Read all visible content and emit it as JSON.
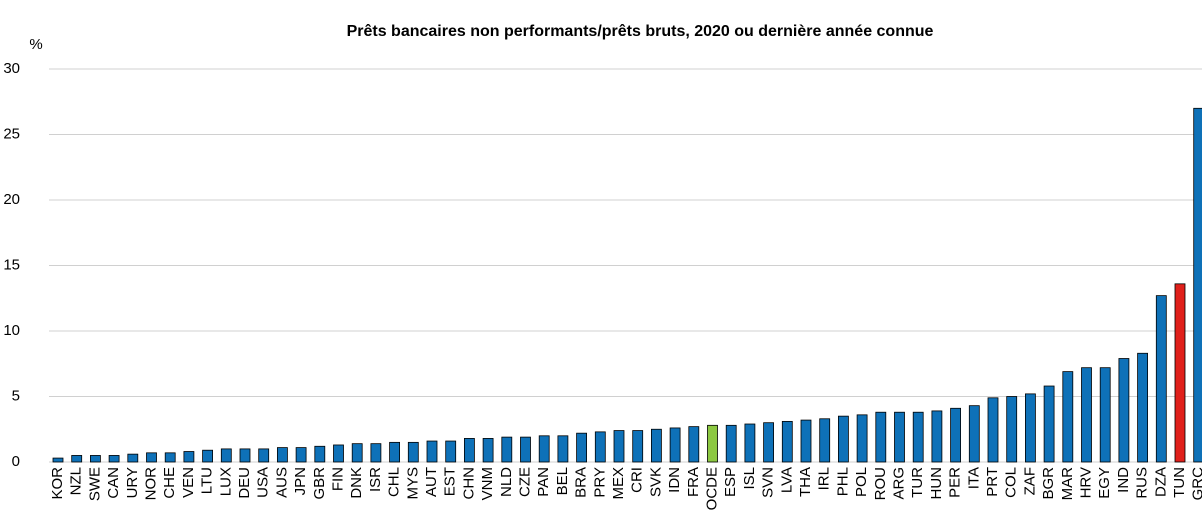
{
  "chart_data": {
    "type": "bar",
    "title": "Prêts bancaires non performants/prêts bruts, 2020 ou dernière année connue",
    "y_unit": "%",
    "categories": [
      "KOR",
      "NZL",
      "SWE",
      "CAN",
      "URY",
      "NOR",
      "CHE",
      "VEN",
      "LTU",
      "LUX",
      "DEU",
      "USA",
      "AUS",
      "JPN",
      "GBR",
      "FIN",
      "DNK",
      "ISR",
      "CHL",
      "MYS",
      "AUT",
      "EST",
      "CHN",
      "VNM",
      "NLD",
      "CZE",
      "PAN",
      "BEL",
      "BRA",
      "PRY",
      "MEX",
      "CRI",
      "SVK",
      "IDN",
      "FRA",
      "OCDE",
      "ESP",
      "ISL",
      "SVN",
      "LVA",
      "THA",
      "IRL",
      "PHL",
      "POL",
      "ROU",
      "ARG",
      "TUR",
      "HUN",
      "PER",
      "ITA",
      "PRT",
      "COL",
      "ZAF",
      "BGR",
      "MAR",
      "HRV",
      "EGY",
      "IND",
      "RUS",
      "DZA",
      "TUN",
      "GRC"
    ],
    "values": [
      0.3,
      0.5,
      0.5,
      0.5,
      0.6,
      0.7,
      0.7,
      0.8,
      0.9,
      1.0,
      1.0,
      1.0,
      1.1,
      1.1,
      1.2,
      1.3,
      1.4,
      1.4,
      1.5,
      1.5,
      1.6,
      1.6,
      1.8,
      1.8,
      1.9,
      1.9,
      2.0,
      2.0,
      2.2,
      2.3,
      2.4,
      2.4,
      2.5,
      2.6,
      2.7,
      2.8,
      2.8,
      2.9,
      3.0,
      3.1,
      3.2,
      3.3,
      3.5,
      3.6,
      3.8,
      3.8,
      3.8,
      3.9,
      4.1,
      4.3,
      4.9,
      5.0,
      5.2,
      5.8,
      6.9,
      7.2,
      7.2,
      7.9,
      8.3,
      12.7,
      13.6,
      27.0
    ],
    "colors": [
      "#0e71b8",
      "#0e71b8",
      "#0e71b8",
      "#0e71b8",
      "#0e71b8",
      "#0e71b8",
      "#0e71b8",
      "#0e71b8",
      "#0e71b8",
      "#0e71b8",
      "#0e71b8",
      "#0e71b8",
      "#0e71b8",
      "#0e71b8",
      "#0e71b8",
      "#0e71b8",
      "#0e71b8",
      "#0e71b8",
      "#0e71b8",
      "#0e71b8",
      "#0e71b8",
      "#0e71b8",
      "#0e71b8",
      "#0e71b8",
      "#0e71b8",
      "#0e71b8",
      "#0e71b8",
      "#0e71b8",
      "#0e71b8",
      "#0e71b8",
      "#0e71b8",
      "#0e71b8",
      "#0e71b8",
      "#0e71b8",
      "#0e71b8",
      "#8cc841",
      "#0e71b8",
      "#0e71b8",
      "#0e71b8",
      "#0e71b8",
      "#0e71b8",
      "#0e71b8",
      "#0e71b8",
      "#0e71b8",
      "#0e71b8",
      "#0e71b8",
      "#0e71b8",
      "#0e71b8",
      "#0e71b8",
      "#0e71b8",
      "#0e71b8",
      "#0e71b8",
      "#0e71b8",
      "#0e71b8",
      "#0e71b8",
      "#0e71b8",
      "#0e71b8",
      "#0e71b8",
      "#0e71b8",
      "#0e71b8",
      "#e0201b",
      "#0e71b8"
    ],
    "ylim": [
      0,
      30
    ],
    "yticks": [
      0,
      5,
      10,
      15,
      20,
      25,
      30
    ],
    "grid": true
  }
}
